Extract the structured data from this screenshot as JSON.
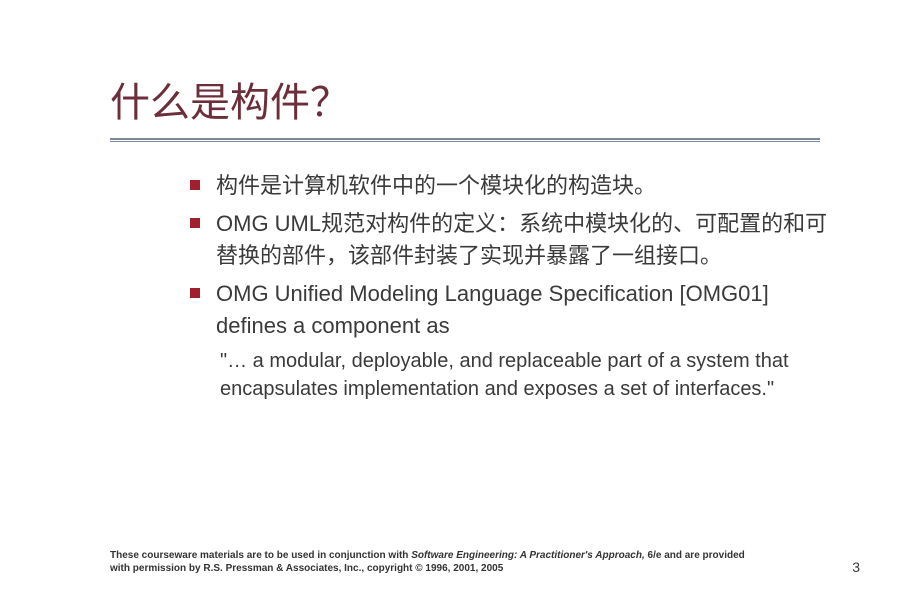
{
  "colors": {
    "title": "#6b2e3a",
    "underline": "#7a8a9a",
    "bullet": "#a02030",
    "body_text": "#3a3a3a",
    "footer_text": "#333333",
    "background": "#ffffff"
  },
  "title": "什么是构件？",
  "title_fontsize": 40,
  "body_fontsize": 22,
  "sub_fontsize": 20,
  "bullets": [
    {
      "text": "构件是计算机软件中的一个模块化的构造块。"
    },
    {
      "text": "OMG UML规范对构件的定义：系统中模块化的、可配置的和可替换的部件，该部件封装了实现并暴露了一组接口。"
    },
    {
      "text": "OMG Unified Modeling Language Specification [OMG01] defines a component as"
    }
  ],
  "sub_quote": "\"… a modular, deployable, and replaceable part of a system that encapsulates implementation and exposes a set of interfaces.\"",
  "footer": {
    "line1_pre": "These courseware materials are to be used in conjunction with ",
    "line1_italic": "Software Engineering: A Practitioner's Approach,",
    "line2": " 6/e and are provided with permission by R.S. Pressman & Associates, Inc., copyright © 1996, 2001, 2005"
  },
  "page_number": "3"
}
